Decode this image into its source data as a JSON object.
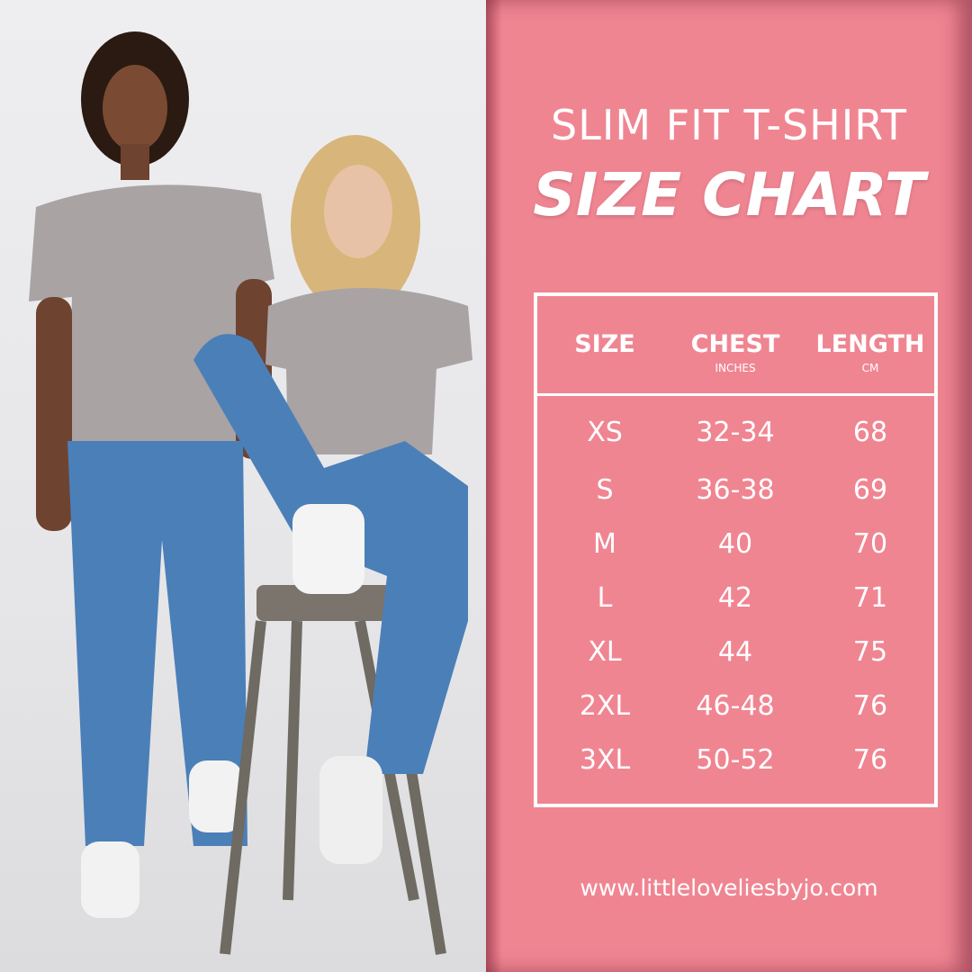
{
  "colors": {
    "panel": "#f08592",
    "text": "#ffffff",
    "photo_bg": "#e9e9eb",
    "tshirt": "#a9a3a4",
    "denim": "#4b7fb8"
  },
  "photo": {
    "icon": "models-wearing-tshirts-photo"
  },
  "title": {
    "line1": "SLIM FIT T-SHIRT",
    "line2": "SIZE CHART"
  },
  "table": {
    "headers": [
      {
        "label": "SIZE",
        "unit": ""
      },
      {
        "label": "CHEST",
        "unit": "INCHES"
      },
      {
        "label": "LENGTH",
        "unit": "CM"
      }
    ],
    "rows": [
      {
        "size": "XS",
        "chest": "32-34",
        "length": "68"
      },
      {
        "size": "S",
        "chest": "36-38",
        "length": "69"
      },
      {
        "size": "M",
        "chest": "40",
        "length": "70"
      },
      {
        "size": "L",
        "chest": "42",
        "length": "71"
      },
      {
        "size": "XL",
        "chest": "44",
        "length": "75"
      },
      {
        "size": "2XL",
        "chest": "46-48",
        "length": "76"
      },
      {
        "size": "3XL",
        "chest": "50-52",
        "length": "76"
      }
    ]
  },
  "footer": {
    "url": "www.littleloveliesbyjo.com"
  }
}
